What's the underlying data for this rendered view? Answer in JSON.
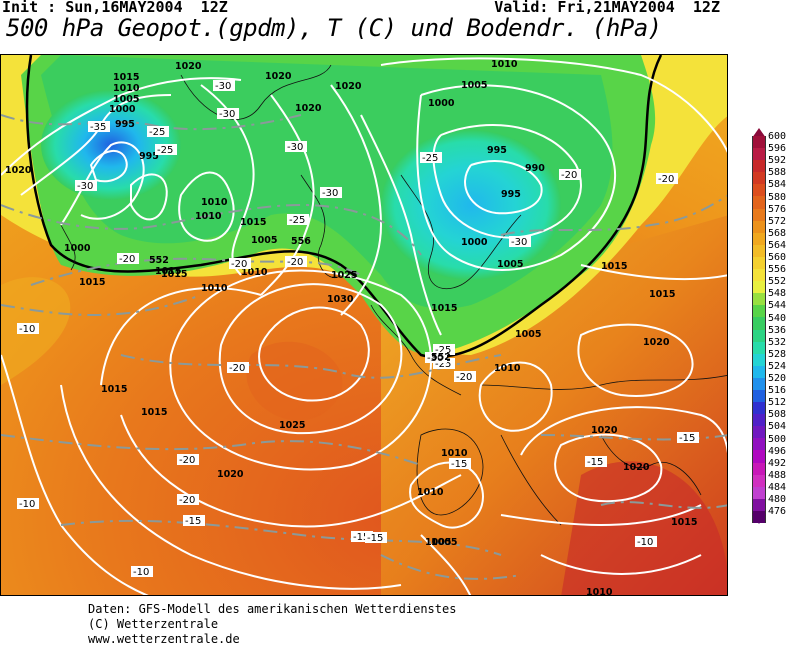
{
  "header": {
    "init": "Init : Sun,16MAY2004  12Z",
    "valid": "Valid: Fri,21MAY2004  12Z",
    "title": "500 hPa Geopot.(gpdm), T (C) und Bodendr. (hPa)"
  },
  "colorbar": {
    "levels": [
      "600",
      "596",
      "592",
      "588",
      "584",
      "580",
      "576",
      "572",
      "568",
      "564",
      "560",
      "556",
      "552",
      "548",
      "544",
      "540",
      "536",
      "532",
      "528",
      "524",
      "520",
      "516",
      "512",
      "508",
      "504",
      "500",
      "496",
      "492",
      "488",
      "484",
      "480",
      "476"
    ],
    "colors": [
      "#a0103a",
      "#b81b45",
      "#c82a2a",
      "#d23a22",
      "#dc4e1e",
      "#e2641c",
      "#e87a1c",
      "#ec921c",
      "#f0a820",
      "#f2bc28",
      "#f4d030",
      "#f4e23a",
      "#e8f040",
      "#98e040",
      "#58d448",
      "#38cc60",
      "#2cd484",
      "#28dcaa",
      "#24d4d4",
      "#20b8ec",
      "#2090ec",
      "#2060e0",
      "#3030d0",
      "#5020c8",
      "#7018c0",
      "#9010c0",
      "#b008c0",
      "#c818b8",
      "#d030c0",
      "#c040d0",
      "#8010a0",
      "#55006a"
    ]
  },
  "map": {
    "pressure_labels": [
      {
        "v": "1020"
      },
      {
        "v": "1015"
      },
      {
        "v": "1010"
      },
      {
        "v": "1005"
      },
      {
        "v": "1000"
      },
      {
        "v": "995"
      },
      {
        "v": "995"
      },
      {
        "v": "1020"
      },
      {
        "v": "1010"
      },
      {
        "v": "1010"
      },
      {
        "v": "1015"
      },
      {
        "v": "1005"
      },
      {
        "v": "1000"
      },
      {
        "v": "1015"
      },
      {
        "v": "1020"
      },
      {
        "v": "1020"
      },
      {
        "v": "1010"
      },
      {
        "v": "1010"
      },
      {
        "v": "1005"
      },
      {
        "v": "1000"
      },
      {
        "v": "995"
      },
      {
        "v": "990"
      },
      {
        "v": "995"
      },
      {
        "v": "1000"
      },
      {
        "v": "1005"
      },
      {
        "v": "1005"
      },
      {
        "v": "1010"
      },
      {
        "v": "1015"
      },
      {
        "v": "1015"
      },
      {
        "v": "1025"
      },
      {
        "v": "1030"
      },
      {
        "v": "1015"
      },
      {
        "v": "1005"
      },
      {
        "v": "1010"
      },
      {
        "v": "1015"
      },
      {
        "v": "1020"
      },
      {
        "v": "1020"
      },
      {
        "v": "1015"
      },
      {
        "v": "1015"
      },
      {
        "v": "1025"
      },
      {
        "v": "1020"
      },
      {
        "v": "1020"
      },
      {
        "v": "1020"
      },
      {
        "v": "1010"
      },
      {
        "v": "1015"
      },
      {
        "v": "1010"
      },
      {
        "v": "1005"
      },
      {
        "v": "1015"
      },
      {
        "v": "1010"
      }
    ],
    "temp_labels": [
      {
        "v": "-35"
      },
      {
        "v": "-30"
      },
      {
        "v": "-25"
      },
      {
        "v": "-25"
      },
      {
        "v": "-30"
      },
      {
        "v": "-30"
      },
      {
        "v": "-30"
      },
      {
        "v": "-30"
      },
      {
        "v": "-25"
      },
      {
        "v": "-20"
      },
      {
        "v": "-25"
      },
      {
        "v": "-20"
      },
      {
        "v": "-20"
      },
      {
        "v": "-30"
      },
      {
        "v": "-25"
      },
      {
        "v": "-20"
      },
      {
        "v": "-20"
      },
      {
        "v": "-10"
      },
      {
        "v": "-20"
      },
      {
        "v": "-15"
      },
      {
        "v": "-15"
      },
      {
        "v": "-15"
      },
      {
        "v": "-10"
      },
      {
        "v": "-10"
      },
      {
        "v": "-15"
      },
      {
        "v": "-20"
      },
      {
        "v": "-15"
      },
      {
        "v": "-10"
      },
      {
        "v": "-25"
      },
      {
        "v": "-30"
      },
      {
        "v": "-20"
      },
      {
        "v": "-15"
      },
      {
        "v": "-20"
      }
    ],
    "gpdm_labels": [
      {
        "v": "552"
      },
      {
        "v": "556"
      },
      {
        "v": "552"
      }
    ]
  },
  "footer": {
    "line1": "Daten: GFS-Modell des amerikanischen Wetterdienstes",
    "line2": "(C) Wetterzentrale",
    "line3": "www.wetterzentrale.de"
  }
}
